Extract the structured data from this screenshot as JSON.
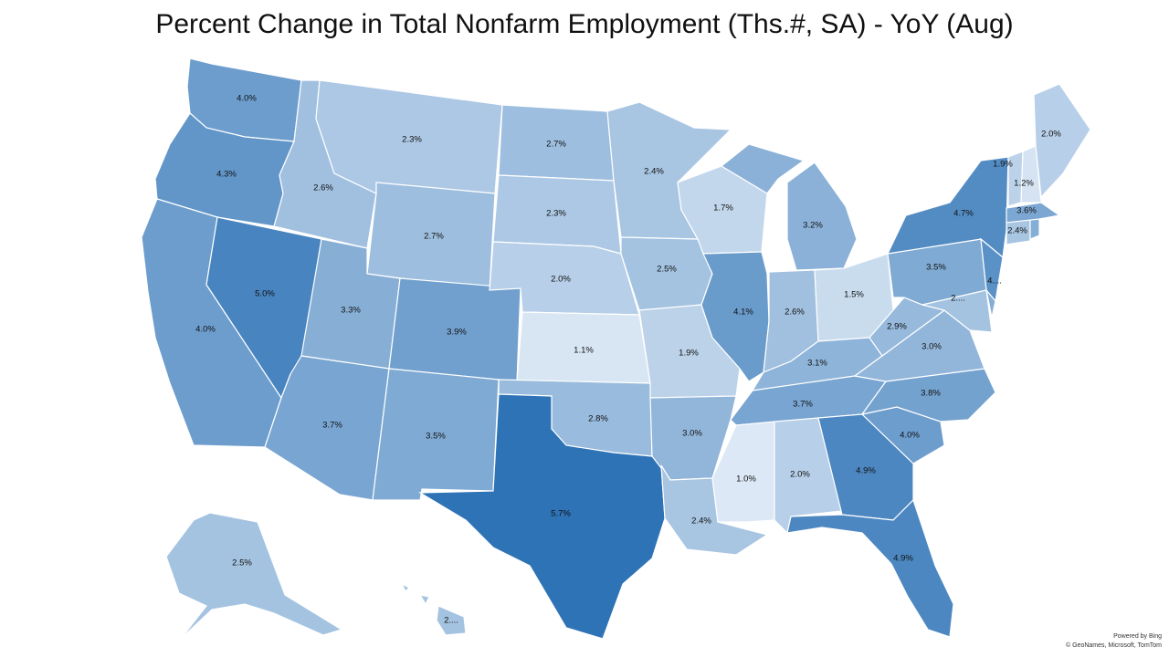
{
  "title": "Percent Change in Total Nonfarm Employment (Ths.#, SA) - YoY (Aug)",
  "credit": {
    "powered": "Powered by Bing",
    "copyright": "© GeoNames, Microsoft, TomTom"
  },
  "color_scale": {
    "low": "#dce8f5",
    "high": "#2e73b6"
  },
  "states": [
    {
      "id": "WA",
      "label": "4.0%",
      "value": 4.0
    },
    {
      "id": "OR",
      "label": "4.3%",
      "value": 4.3
    },
    {
      "id": "CA",
      "label": "4.0%",
      "value": 4.0
    },
    {
      "id": "NV",
      "label": "5.0%",
      "value": 5.0
    },
    {
      "id": "ID",
      "label": "2.6%",
      "value": 2.6
    },
    {
      "id": "MT",
      "label": "2.3%",
      "value": 2.3
    },
    {
      "id": "WY",
      "label": "2.7%",
      "value": 2.7
    },
    {
      "id": "UT",
      "label": "3.3%",
      "value": 3.3
    },
    {
      "id": "AZ",
      "label": "3.7%",
      "value": 3.7
    },
    {
      "id": "CO",
      "label": "3.9%",
      "value": 3.9
    },
    {
      "id": "NM",
      "label": "3.5%",
      "value": 3.5
    },
    {
      "id": "ND",
      "label": "2.7%",
      "value": 2.7
    },
    {
      "id": "SD",
      "label": "2.3%",
      "value": 2.3
    },
    {
      "id": "NE",
      "label": "2.0%",
      "value": 2.0
    },
    {
      "id": "KS",
      "label": "1.1%",
      "value": 1.1
    },
    {
      "id": "OK",
      "label": "2.8%",
      "value": 2.8
    },
    {
      "id": "TX",
      "label": "5.7%",
      "value": 5.7
    },
    {
      "id": "MN",
      "label": "2.4%",
      "value": 2.4
    },
    {
      "id": "IA",
      "label": "2.5%",
      "value": 2.5
    },
    {
      "id": "MO",
      "label": "1.9%",
      "value": 1.9
    },
    {
      "id": "AR",
      "label": "3.0%",
      "value": 3.0
    },
    {
      "id": "LA",
      "label": "2.4%",
      "value": 2.4
    },
    {
      "id": "WI",
      "label": "1.7%",
      "value": 1.7
    },
    {
      "id": "IL",
      "label": "4.1%",
      "value": 4.1
    },
    {
      "id": "MI",
      "label": "3.2%",
      "value": 3.2
    },
    {
      "id": "IN",
      "label": "2.6%",
      "value": 2.6
    },
    {
      "id": "OH",
      "label": "1.5%",
      "value": 1.5
    },
    {
      "id": "KY",
      "label": "3.1%",
      "value": 3.1
    },
    {
      "id": "TN",
      "label": "3.7%",
      "value": 3.7
    },
    {
      "id": "MS",
      "label": "1.0%",
      "value": 1.0
    },
    {
      "id": "AL",
      "label": "2.0%",
      "value": 2.0
    },
    {
      "id": "GA",
      "label": "4.9%",
      "value": 4.9
    },
    {
      "id": "FL",
      "label": "4.9%",
      "value": 4.9
    },
    {
      "id": "SC",
      "label": "4.0%",
      "value": 4.0
    },
    {
      "id": "NC",
      "label": "3.8%",
      "value": 3.8
    },
    {
      "id": "VA",
      "label": "3.0%",
      "value": 3.0
    },
    {
      "id": "WV",
      "label": "2.9%",
      "value": 2.9
    },
    {
      "id": "PA",
      "label": "3.5%",
      "value": 3.5
    },
    {
      "id": "NY",
      "label": "4.7%",
      "value": 4.7
    },
    {
      "id": "NJ",
      "label": "4....",
      "value": null
    },
    {
      "id": "MD",
      "label": "2....",
      "value": null
    },
    {
      "id": "DE",
      "label": "",
      "value": null
    },
    {
      "id": "CT",
      "label": "2.4%",
      "value": 2.4
    },
    {
      "id": "RI",
      "label": "",
      "value": null
    },
    {
      "id": "MA",
      "label": "3.6%",
      "value": 3.6
    },
    {
      "id": "VT",
      "label": "1.9%",
      "value": 1.9
    },
    {
      "id": "NH",
      "label": "1.2%",
      "value": 1.2
    },
    {
      "id": "ME",
      "label": "2.0%",
      "value": 2.0
    },
    {
      "id": "AK",
      "label": "2.5%",
      "value": 2.5
    },
    {
      "id": "HI",
      "label": "2....",
      "value": null
    }
  ]
}
